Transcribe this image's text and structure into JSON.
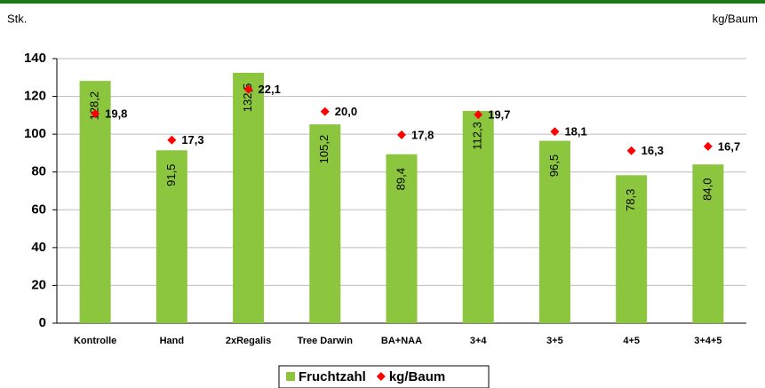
{
  "chart_data": {
    "type": "bar",
    "y_axis_label": "Stk.",
    "y2_axis_label": "kg/Baum",
    "categories": [
      "Kontrolle",
      "Hand",
      "2xRegalis",
      "Tree Darwin",
      "BA+NAA",
      "3+4",
      "3+5",
      "4+5",
      "3+4+5"
    ],
    "series": [
      {
        "name": "Fruchtzahl",
        "type": "bar",
        "color": "#8cc63f",
        "values": [
          128.2,
          91.5,
          132.5,
          105.2,
          89.4,
          112.3,
          96.5,
          78.3,
          84.0
        ],
        "value_labels": [
          "128,2",
          "91,5",
          "132,5",
          "105,2",
          "89,4",
          "112,3",
          "96,5",
          "78,3",
          "84,0"
        ]
      },
      {
        "name": "kg/Baum",
        "type": "scatter",
        "axis": "y2",
        "color": "#ff0000",
        "values": [
          19.8,
          17.3,
          22.1,
          20.0,
          17.8,
          19.7,
          18.1,
          16.3,
          16.7
        ],
        "value_labels": [
          "19,8",
          "17,3",
          "22,1",
          "20,0",
          "17,8",
          "19,7",
          "18,1",
          "16,3",
          "16,7"
        ]
      }
    ],
    "ylim": [
      0,
      140
    ],
    "yticks": [
      0,
      20,
      40,
      60,
      80,
      100,
      120,
      140
    ],
    "y2lim": [
      0,
      25
    ],
    "grid": true,
    "legend": "bottom"
  }
}
